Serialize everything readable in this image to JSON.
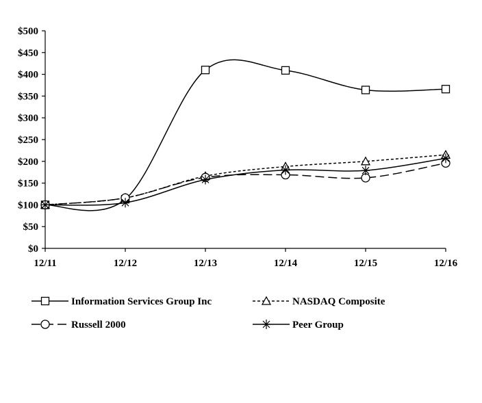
{
  "chart_data": {
    "type": "line",
    "title": "",
    "xlabel": "",
    "ylabel": "",
    "categories": [
      "12/11",
      "12/12",
      "12/13",
      "12/14",
      "12/15",
      "12/16"
    ],
    "y_ticks": [
      "$0",
      "$50",
      "$100",
      "$150",
      "$200",
      "$250",
      "$300",
      "$350",
      "$400",
      "$450",
      "$500"
    ],
    "ylim": [
      0,
      500
    ],
    "grid": false,
    "legend_position": "bottom",
    "series": [
      {
        "name": "Information Services Group Inc",
        "marker": "square",
        "dash": "solid",
        "values": [
          100,
          113,
          410,
          409,
          364,
          366
        ]
      },
      {
        "name": "NASDAQ Composite",
        "marker": "triangle",
        "dash": "short-dash",
        "values": [
          100,
          116,
          166,
          188,
          200,
          215
        ]
      },
      {
        "name": "Russell 2000",
        "marker": "circle",
        "dash": "long-dash",
        "values": [
          100,
          116,
          163,
          169,
          162,
          196
        ]
      },
      {
        "name": "Peer Group",
        "marker": "asterisk",
        "dash": "solid",
        "values": [
          100,
          105,
          158,
          180,
          179,
          207
        ]
      }
    ],
    "colors": {
      "line": "#000000",
      "background": "#ffffff"
    }
  }
}
